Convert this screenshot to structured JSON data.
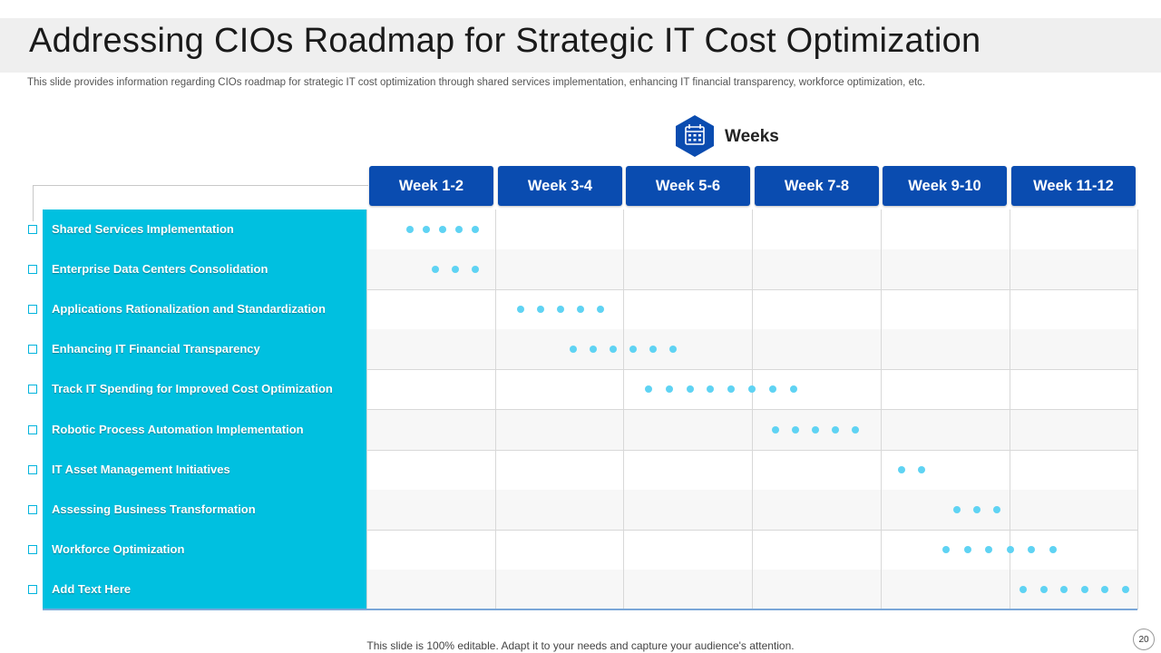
{
  "slide": {
    "title": "Addressing  CIOs Roadmap  for Strategic  IT Cost Optimization",
    "subtitle": "This slide provides information regarding CIOs roadmap for strategic IT cost optimization through shared services implementation, enhancing IT financial transparency, workforce optimization, etc.",
    "footer": "This slide is 100% editable. Adapt it to your needs and capture your audience's attention.",
    "page_number": "20"
  },
  "weeks_heading": {
    "label": "Weeks",
    "icon": "calendar-icon"
  },
  "columns": [
    "Week 1-2",
    "Week 3-4",
    "Week 5-6",
    "Week 7-8",
    "Week 9-10",
    "Week 11-12"
  ],
  "tasks": [
    {
      "label": "Shared Services Implementation",
      "dots": 5
    },
    {
      "label": "Enterprise Data Centers Consolidation",
      "dots": 3
    },
    {
      "label": "Applications Rationalization and Standardization",
      "dots": 5
    },
    {
      "label": "Enhancing IT Financial Transparency",
      "dots": 6
    },
    {
      "label": "Track IT Spending for Improved Cost Optimization",
      "dots": 8
    },
    {
      "label": "Robotic Process Automation Implementation",
      "dots": 5
    },
    {
      "label": "IT Asset Management Initiatives",
      "dots": 2
    },
    {
      "label": "Assessing Business Transformation",
      "dots": 3
    },
    {
      "label": "Workforce Optimization",
      "dots": 6
    },
    {
      "label": "Add Text Here",
      "dots": 6
    }
  ],
  "colors": {
    "header_blue": "#0a4cb0",
    "task_panel": "#00c0e0",
    "dot": "#5fd3f3"
  }
}
